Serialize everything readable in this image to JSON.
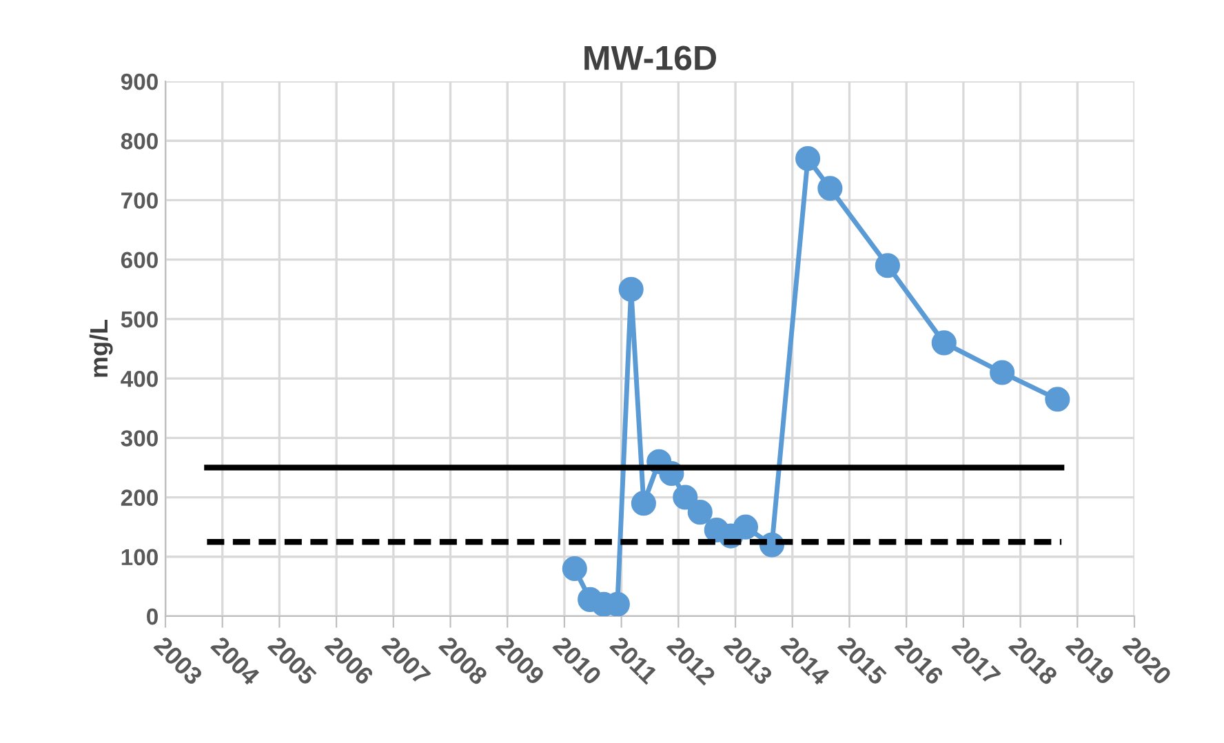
{
  "chart_data": {
    "type": "line",
    "title": "MW-16D",
    "ylabel": "mg/L",
    "xlim": [
      2003,
      2020
    ],
    "xticks": [
      2003,
      2004,
      2005,
      2006,
      2007,
      2008,
      2009,
      2010,
      2011,
      2012,
      2013,
      2014,
      2015,
      2016,
      2017,
      2018,
      2019,
      2020
    ],
    "ylim": [
      0,
      900
    ],
    "yticks": [
      0,
      100,
      200,
      300,
      400,
      500,
      600,
      700,
      800,
      900
    ],
    "grid": true,
    "legend": false,
    "series": [
      {
        "color": "#5b9bd5",
        "marker": "circle",
        "line_style": "solid",
        "x": [
          2010.18,
          2010.45,
          2010.69,
          2010.93,
          2011.17,
          2011.39,
          2011.66,
          2011.88,
          2012.12,
          2012.38,
          2012.67,
          2012.92,
          2013.18,
          2013.64,
          2014.27,
          2014.66,
          2015.67,
          2016.66,
          2017.68,
          2018.65
        ],
        "values": [
          80,
          28,
          20,
          20,
          550,
          190,
          260,
          240,
          200,
          175,
          145,
          135,
          150,
          120,
          770,
          720,
          590,
          460,
          410,
          365
        ]
      },
      {
        "color": "#000000",
        "marker": "none",
        "line_style": "solid",
        "x": [
          2003.73,
          2018.72
        ],
        "values": [
          250,
          250
        ]
      },
      {
        "color": "#000000",
        "marker": "none",
        "line_style": "dashed",
        "x": [
          2003.73,
          2018.72
        ],
        "values": [
          125,
          125
        ]
      }
    ]
  }
}
